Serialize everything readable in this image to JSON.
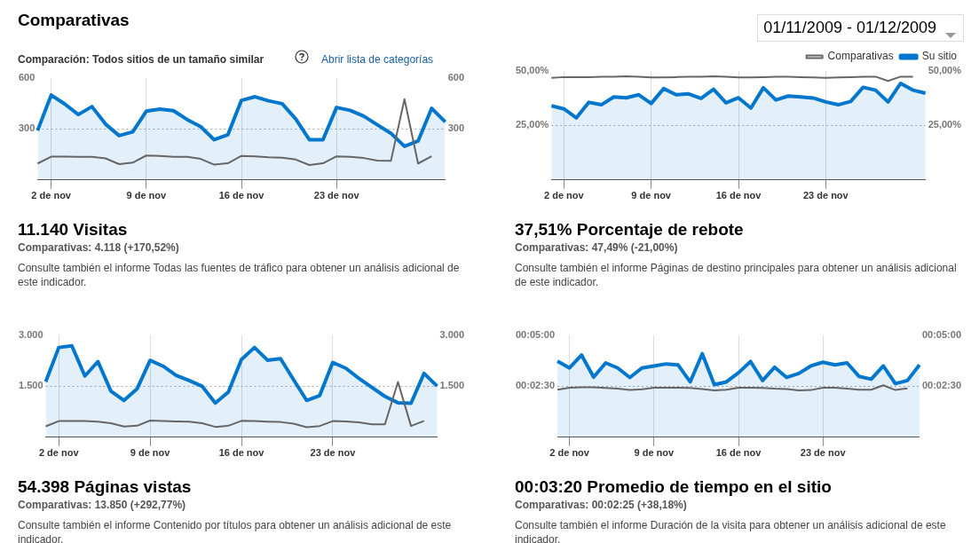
{
  "chart_data": [
    {
      "type": "area",
      "title": "11.140 Visitas",
      "subtitle": "Comparativas: 4.118 (+170,52%)",
      "annotations": [
        "Comparativas",
        "Comparación: Todos sitios de un tamaño similar",
        "Abrir lista de categorías",
        "01/11/2009 - 01/12/2009",
        "Consulte también el informe Todas las fuentes de tráfico para obtener un análisis adicional de este indicador."
      ],
      "categories": [
        null,
        "2 de nov",
        null,
        null,
        null,
        null,
        null,
        null,
        "9 de nov",
        null,
        null,
        null,
        null,
        null,
        null,
        "16 de nov",
        null,
        null,
        null,
        null,
        null,
        null,
        "23 de nov",
        null,
        null,
        null,
        null,
        null,
        null,
        null,
        null
      ],
      "series": [
        {
          "type": "area",
          "color": "#0077cc",
          "values": [
            291,
            500,
            447,
            385,
            432,
            329,
            261,
            283,
            405,
            417,
            408,
            356,
            314,
            237,
            266,
            469,
            490,
            466,
            449,
            359,
            237,
            237,
            427,
            410,
            376,
            325,
            275,
            198,
            229,
            422,
            342
          ]
        },
        {
          "type": "line",
          "color": "#666666",
          "values": [
            97,
            137,
            137,
            136,
            136,
            127,
            93,
            102,
            144,
            141,
            136,
            136,
            124,
            90,
            98,
            142,
            139,
            134,
            131,
            120,
            88,
            98,
            139,
            136,
            129,
            114,
            112,
            476,
            97,
            139,
            null
          ]
        }
      ],
      "ylim": [
        0,
        600
      ],
      "yticks": [
        300,
        600
      ],
      "y2lim": [
        0,
        600
      ],
      "y2ticks": [
        300,
        600
      ],
      "grid": "x",
      "ref_lines": [
        {
          "axis": "y",
          "value": 300,
          "color": "#aaaaaa",
          "line_style": "dotted"
        }
      ],
      "marker": "none"
    },
    {
      "type": "area",
      "title": "37,51% Porcentaje de rebote",
      "subtitle": "Comparativas: 47,49% (-21,00%)",
      "annotations": [
        "Consulte también el informe Páginas de destino principales para obtener un análisis adicional de este indicador."
      ],
      "categories": [
        null,
        "2 de nov",
        null,
        null,
        null,
        null,
        null,
        null,
        "9 de nov",
        null,
        null,
        null,
        null,
        null,
        null,
        "16 de nov",
        null,
        null,
        null,
        null,
        null,
        null,
        "23 de nov",
        null,
        null,
        null,
        null,
        null,
        null,
        null,
        null
      ],
      "series": [
        {
          "type": "area",
          "name": "Su sitio",
          "color": "#0077cc",
          "values": [
            34.0,
            32.6,
            28.5,
            35.6,
            34.5,
            38.1,
            37.7,
            39.1,
            35.1,
            41.9,
            39.1,
            39.5,
            37.4,
            41.6,
            35.4,
            37.7,
            33.0,
            42.3,
            36.7,
            38.5,
            38.1,
            37.6,
            35.8,
            34.5,
            36.0,
            42.5,
            41.2,
            35.8,
            44.3,
            41.2,
            39.8
          ]
        },
        {
          "type": "line",
          "name": "Comparativas",
          "color": "#666666",
          "values": [
            46.8,
            47.2,
            47.2,
            47.2,
            47.4,
            47.4,
            47.6,
            47.4,
            47.0,
            47.0,
            47.2,
            47.4,
            47.4,
            47.6,
            47.4,
            47.0,
            47.0,
            47.2,
            47.4,
            47.4,
            47.2,
            47.0,
            46.8,
            47.0,
            47.2,
            47.4,
            47.4,
            45.4,
            47.4,
            47.4,
            null
          ]
        }
      ],
      "ylim": [
        0,
        50
      ],
      "yticks": [
        {
          "value": 25,
          "label": "25,00%"
        },
        {
          "value": 50,
          "label": "50,00%"
        }
      ],
      "y2lim": [
        0,
        50
      ],
      "y2ticks": [
        {
          "value": 25,
          "label": "25,00%"
        },
        {
          "value": 50,
          "label": "50,00%"
        }
      ],
      "grid": "x",
      "ref_lines": [
        {
          "axis": "y",
          "value": 25,
          "color": "#aaaaaa",
          "line_style": "dotted"
        }
      ],
      "legend": "top right",
      "marker": "none"
    },
    {
      "type": "area",
      "title": "54.398 Páginas vistas",
      "subtitle": "Comparativas: 13.850 (+292,77%)",
      "annotations": [
        "Consulte también el informe Contenido por títulos para obtener un análisis adicional de este indicador."
      ],
      "categories": [
        null,
        "2 de nov",
        null,
        null,
        null,
        null,
        null,
        null,
        "9 de nov",
        null,
        null,
        null,
        null,
        null,
        null,
        "16 de nov",
        null,
        null,
        null,
        null,
        null,
        null,
        "23 de nov",
        null,
        null,
        null,
        null,
        null,
        null,
        null,
        null
      ],
      "series": [
        {
          "type": "area",
          "color": "#0077cc",
          "values": [
            1636,
            2644,
            2695,
            1805,
            2229,
            1356,
            1085,
            1424,
            2263,
            2093,
            1822,
            1669,
            1500,
            1008,
            1331,
            2288,
            2644,
            2271,
            2314,
            1695,
            1085,
            1229,
            2203,
            2034,
            1737,
            1466,
            1203,
            1017,
            1000,
            1881,
            1508
          ]
        },
        {
          "type": "line",
          "color": "#666666",
          "values": [
            322,
            475,
            475,
            475,
            458,
            415,
            314,
            339,
            492,
            475,
            466,
            458,
            415,
            305,
            339,
            483,
            475,
            458,
            449,
            398,
            297,
            331,
            475,
            466,
            441,
            381,
            381,
            1627,
            331,
            483,
            null
          ]
        }
      ],
      "ylim": [
        0,
        3000
      ],
      "yticks": [
        {
          "value": 1500,
          "label": "1.500"
        },
        {
          "value": 3000,
          "label": "3.000"
        }
      ],
      "y2lim": [
        0,
        3000
      ],
      "y2ticks": [
        {
          "value": 1500,
          "label": "1.500"
        },
        {
          "value": 3000,
          "label": "3.000"
        }
      ],
      "grid": "x",
      "ref_lines": [
        {
          "axis": "y",
          "value": 1500,
          "color": "#aaaaaa",
          "line_style": "dotted"
        }
      ],
      "marker": "none"
    },
    {
      "type": "area",
      "title": "00:03:20 Promedio de tiempo en el sitio",
      "subtitle": "Comparativas: 00:02:25 (+38,18%)",
      "annotations": [
        "Consulte también el informe Duración de la visita para obtener un análisis adicional de este indicador."
      ],
      "categories": [
        null,
        "2 de nov",
        null,
        null,
        null,
        null,
        null,
        null,
        "9 de nov",
        null,
        null,
        null,
        null,
        null,
        null,
        "16 de nov",
        null,
        null,
        null,
        null,
        null,
        null,
        "23 de nov",
        null,
        null,
        null,
        null,
        null,
        null,
        null,
        null
      ],
      "series": [
        {
          "type": "area",
          "color": "#0077cc",
          "values": [
            224,
            204,
            242,
            177,
            219,
            204,
            176,
            204,
            210,
            216,
            213,
            163,
            246,
            155,
            163,
            190,
            223,
            167,
            206,
            176,
            188,
            210,
            221,
            213,
            219,
            179,
            171,
            210,
            158,
            167,
            213
          ]
        },
        {
          "type": "line",
          "color": "#666666",
          "values": [
            140,
            146,
            147,
            147,
            145,
            143,
            139,
            141,
            146,
            146,
            146,
            145,
            142,
            138,
            140,
            146,
            146,
            145,
            143,
            142,
            138,
            139,
            146,
            146,
            143,
            140,
            140,
            153,
            139,
            144,
            null
          ]
        }
      ],
      "ylim": [
        0,
        300
      ],
      "yticks": [
        {
          "value": 150,
          "label": "00:02:30"
        },
        {
          "value": 300,
          "label": "00:05:00"
        }
      ],
      "y2lim": [
        0,
        300
      ],
      "y2ticks": [
        {
          "value": 150,
          "label": "00:02:30"
        },
        {
          "value": 300,
          "label": "00:05:00"
        }
      ],
      "grid": "x",
      "ref_lines": [
        {
          "axis": "y",
          "value": 150,
          "color": "#aaaaaa",
          "line_style": "dotted"
        }
      ],
      "marker": "none"
    }
  ]
}
